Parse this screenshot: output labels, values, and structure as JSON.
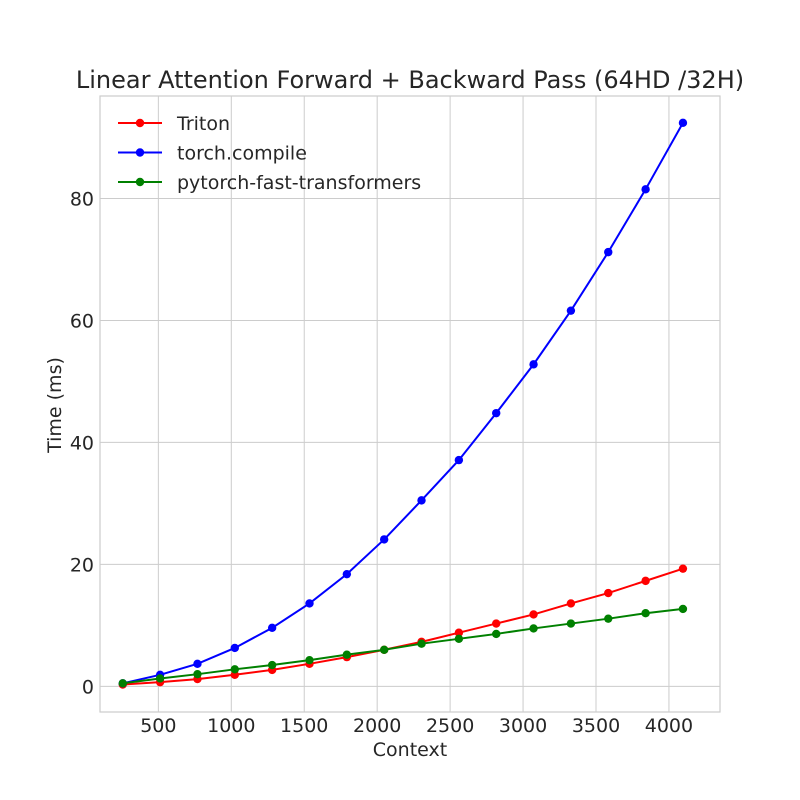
{
  "chart_data": {
    "type": "line",
    "title": "Linear Attention Forward + Backward Pass (64HD /32H)",
    "xlabel": "Context",
    "ylabel": "Time (ms)",
    "x": [
      256,
      512,
      768,
      1024,
      1280,
      1536,
      1792,
      2048,
      2304,
      2560,
      2816,
      3072,
      3328,
      3584,
      3840,
      4096
    ],
    "xticks": [
      500,
      1000,
      1500,
      2000,
      2500,
      3000,
      3500,
      4000
    ],
    "yticks": [
      0,
      20,
      40,
      60,
      80
    ],
    "xlim": [
      100,
      4350
    ],
    "ylim": [
      -4.2,
      96.8
    ],
    "grid": true,
    "legend": "top-left",
    "series": [
      {
        "name": "Triton",
        "color": "#ff0000",
        "values": [
          0.3,
          0.7,
          1.2,
          1.9,
          2.7,
          3.7,
          4.8,
          6.0,
          7.3,
          8.8,
          10.3,
          11.8,
          13.6,
          15.3,
          17.3,
          19.3
        ]
      },
      {
        "name": "torch.compile",
        "color": "#0000ff",
        "values": [
          0.5,
          1.9,
          3.7,
          6.3,
          9.6,
          13.6,
          18.4,
          24.1,
          30.5,
          37.1,
          44.8,
          52.8,
          61.6,
          71.2,
          81.5,
          92.4
        ]
      },
      {
        "name": "pytorch-fast-transformers",
        "color": "#008000",
        "values": [
          0.5,
          1.3,
          2.0,
          2.8,
          3.5,
          4.3,
          5.2,
          6.0,
          7.0,
          7.8,
          8.6,
          9.5,
          10.3,
          11.1,
          12.0,
          12.7
        ]
      }
    ]
  }
}
